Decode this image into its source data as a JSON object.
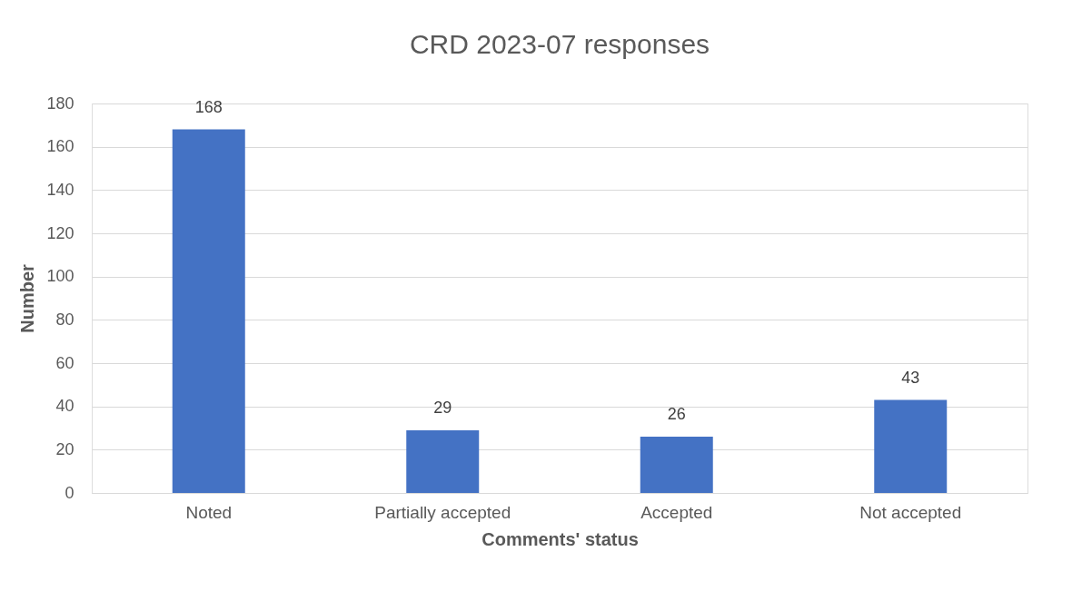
{
  "chart_data": {
    "type": "bar",
    "title": "CRD 2023-07 responses",
    "xlabel": "Comments' status",
    "ylabel": "Number",
    "categories": [
      "Noted",
      "Partially accepted",
      "Accepted",
      "Not accepted"
    ],
    "values": [
      168,
      29,
      26,
      43
    ],
    "color": "#4472c4",
    "ylim": [
      0,
      180
    ],
    "yticks": [
      0,
      20,
      40,
      60,
      80,
      100,
      120,
      140,
      160,
      180
    ],
    "grid": "y",
    "data_labels": true
  }
}
